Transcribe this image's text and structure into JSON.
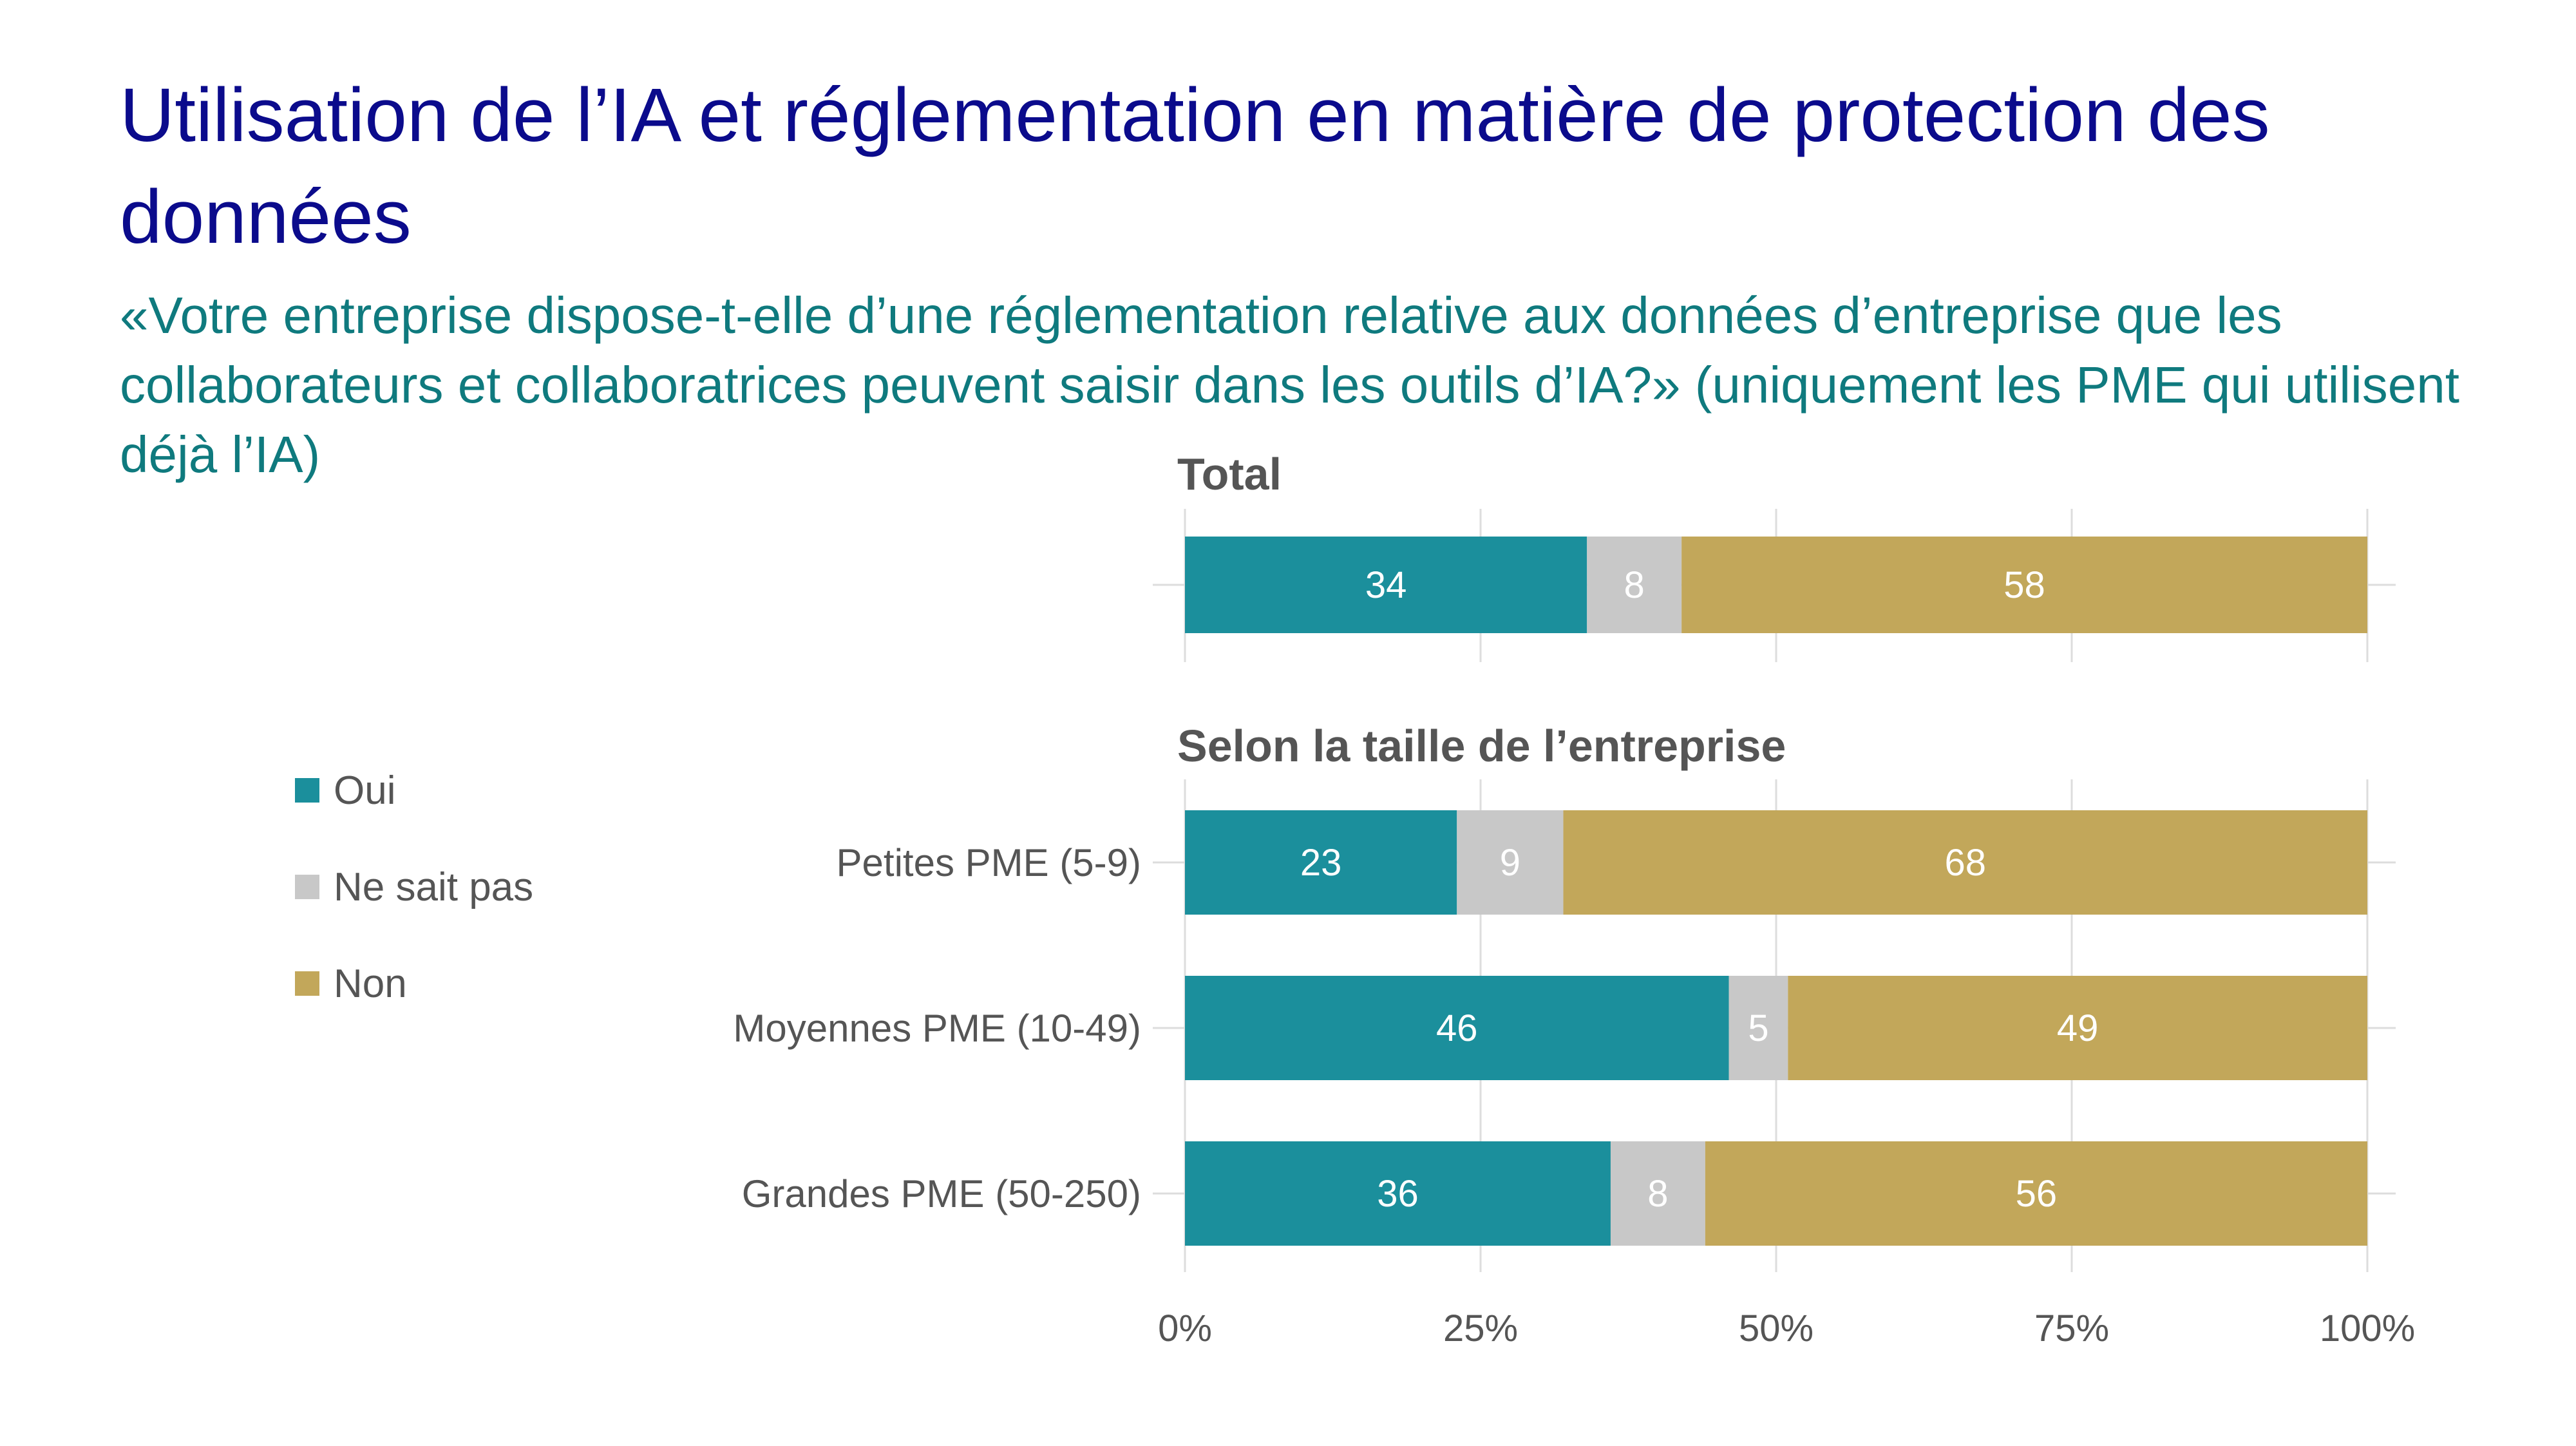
{
  "title": "Utilisation de l’IA et réglementation en matière de protection des données",
  "subtitle": "«Votre entreprise dispose-t-elle d’une réglementation relative aux données d’entreprise que les collaborateurs et collaboratrices peuvent saisir dans les outils d’IA?» (uniquement les PME qui utilisent déjà l’IA)",
  "colors": {
    "oui": "#1b8f9c",
    "ne_sait_pas": "#c8c8c8",
    "non": "#c2a75a",
    "grid": "#dddddd",
    "title": "#0b0b8c",
    "subtitle": "#0f7a7e"
  },
  "legend": [
    {
      "label": "Oui",
      "color": "#1b8f9c"
    },
    {
      "label": "Ne sait pas",
      "color": "#c8c8c8"
    },
    {
      "label": "Non",
      "color": "#c2a75a"
    }
  ],
  "chart_data": {
    "type": "bar",
    "orientation": "horizontal",
    "stacked": true,
    "xlim": [
      0,
      100
    ],
    "xticks": [
      "0%",
      "25%",
      "50%",
      "75%",
      "100%"
    ],
    "grid": true,
    "legend_position": "left",
    "series_names": [
      "Oui",
      "Ne sait pas",
      "Non"
    ],
    "panels": [
      {
        "label": "Total",
        "rows": [
          {
            "category": "",
            "values": [
              34,
              8,
              58
            ]
          }
        ]
      },
      {
        "label": "Selon la taille de l’entreprise",
        "rows": [
          {
            "category": "Petites PME (5-9)",
            "values": [
              23,
              9,
              68
            ]
          },
          {
            "category": "Moyennes PME (10-49)",
            "values": [
              46,
              5,
              49
            ]
          },
          {
            "category": "Grandes PME (50-250)",
            "values": [
              36,
              8,
              56
            ]
          }
        ]
      }
    ]
  }
}
